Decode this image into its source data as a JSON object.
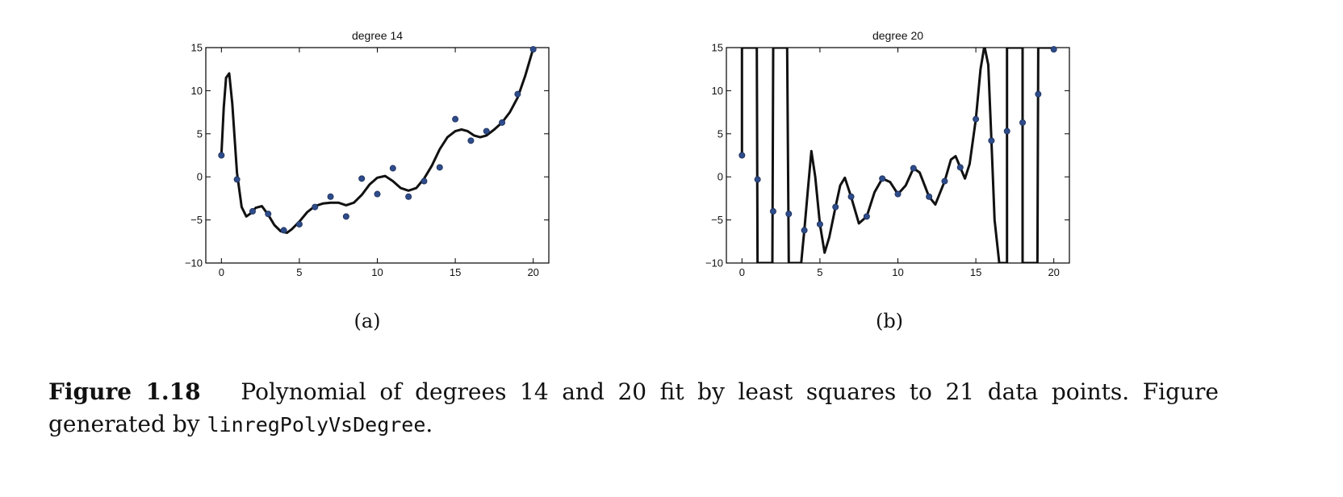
{
  "chart_data": [
    {
      "type": "line",
      "title": "degree 14",
      "xlim": [
        -1,
        21
      ],
      "ylim": [
        -10,
        15
      ],
      "xticks": [
        "0",
        "5",
        "10",
        "15",
        "20"
      ],
      "xtick_values": [
        0,
        5,
        10,
        15,
        20
      ],
      "yticks": [
        "15",
        "10",
        "5",
        "0",
        "-5",
        "-10"
      ],
      "ytick_values": [
        15,
        10,
        5,
        0,
        -5,
        -10
      ],
      "grid": false,
      "series": [
        {
          "kind": "scatter",
          "x": [
            0,
            1,
            2,
            3,
            4,
            5,
            6,
            7,
            8,
            9,
            10,
            11,
            12,
            13,
            14,
            15,
            16,
            17,
            18,
            19,
            20
          ],
          "y": [
            2.5,
            -0.3,
            -4.0,
            -4.3,
            -6.2,
            -5.5,
            -3.5,
            -2.3,
            -4.6,
            -0.2,
            -2.0,
            1.0,
            -2.3,
            -0.5,
            1.1,
            6.7,
            4.2,
            5.3,
            6.3,
            9.6,
            14.8
          ]
        },
        {
          "kind": "line",
          "x": [
            0,
            0.15,
            0.3,
            0.5,
            0.7,
            1.0,
            1.3,
            1.6,
            1.9,
            2.2,
            2.6,
            3.0,
            3.4,
            3.8,
            4.2,
            4.5,
            5.0,
            5.5,
            6.0,
            6.5,
            7.0,
            7.5,
            8.0,
            8.5,
            9.0,
            9.5,
            10.0,
            10.5,
            11.0,
            11.5,
            12.0,
            12.5,
            13.0,
            13.5,
            14.0,
            14.5,
            15.0,
            15.4,
            15.8,
            16.2,
            16.6,
            17.0,
            17.5,
            18.0,
            18.5,
            19.0,
            19.5,
            20.0
          ],
          "y": [
            2.5,
            8.0,
            11.5,
            12.0,
            8.5,
            0.5,
            -3.5,
            -4.6,
            -4.2,
            -3.6,
            -3.4,
            -4.4,
            -5.6,
            -6.3,
            -6.5,
            -6.1,
            -5.2,
            -4.1,
            -3.4,
            -3.1,
            -3.0,
            -3.0,
            -3.3,
            -3.0,
            -2.1,
            -0.9,
            -0.1,
            0.1,
            -0.5,
            -1.3,
            -1.6,
            -1.3,
            -0.2,
            1.3,
            3.2,
            4.6,
            5.3,
            5.5,
            5.3,
            4.8,
            4.6,
            4.8,
            5.5,
            6.3,
            7.5,
            9.2,
            11.8,
            14.9
          ]
        }
      ]
    },
    {
      "type": "line",
      "title": "degree 20",
      "xlim": [
        -1,
        21
      ],
      "ylim": [
        -10,
        15
      ],
      "xticks": [
        "0",
        "5",
        "10",
        "15",
        "20"
      ],
      "xtick_values": [
        0,
        5,
        10,
        15,
        20
      ],
      "yticks": [
        "15",
        "10",
        "5",
        "0",
        "-5",
        "-10"
      ],
      "ytick_values": [
        15,
        10,
        5,
        0,
        -5,
        -10
      ],
      "grid": false,
      "series": [
        {
          "kind": "scatter",
          "x": [
            0,
            1,
            2,
            3,
            4,
            5,
            6,
            7,
            8,
            9,
            10,
            11,
            12,
            13,
            14,
            15,
            16,
            17,
            18,
            19,
            20
          ],
          "y": [
            2.5,
            -0.3,
            -4.0,
            -4.3,
            -6.2,
            -5.5,
            -3.5,
            -2.3,
            -4.6,
            -0.2,
            -2.0,
            1.0,
            -2.3,
            -0.5,
            1.1,
            6.7,
            4.2,
            5.3,
            6.3,
            9.6,
            14.8
          ]
        },
        {
          "kind": "line",
          "x": [
            0,
            0.0,
            0.95,
            1.0,
            1.95,
            2.0,
            2.9,
            3.0,
            3.05,
            3.05,
            3.8,
            3.9,
            4.0,
            4.2,
            4.45,
            4.7,
            5.0,
            5.3,
            5.6,
            6.0,
            6.3,
            6.6,
            7.0,
            7.5,
            8.0,
            8.5,
            9.0,
            9.5,
            10.0,
            10.5,
            11.0,
            11.4,
            12.0,
            12.4,
            13.0,
            13.4,
            13.7,
            14.0,
            14.3,
            14.6,
            15.0,
            15.3,
            15.55,
            15.8,
            16.0,
            16.2,
            16.5,
            16.85,
            17.0,
            17.0,
            17.9,
            18.0,
            18.0,
            18.95,
            19.0,
            19.0,
            20.0
          ],
          "y": [
            2.5,
            15,
            15,
            -10,
            -10,
            15,
            15,
            -10,
            -10,
            -10,
            -10,
            -8.0,
            -6.2,
            -2.0,
            3.0,
            0.0,
            -5.5,
            -8.8,
            -7.0,
            -3.5,
            -1.0,
            -0.1,
            -2.3,
            -5.4,
            -4.6,
            -1.8,
            -0.2,
            -0.6,
            -2.0,
            -1.0,
            1.0,
            0.5,
            -2.3,
            -3.2,
            -0.5,
            2.0,
            2.4,
            1.1,
            -0.2,
            1.5,
            6.7,
            12.5,
            15.2,
            13.0,
            4.2,
            -5.0,
            -10.0,
            -10.0,
            -10.0,
            15.0,
            15.0,
            15.0,
            -10.0,
            -10.0,
            15.0,
            15.0,
            15.0
          ]
        }
      ]
    }
  ],
  "panels": {
    "a_label": "(a)",
    "b_label": "(b)"
  },
  "caption": {
    "label": "Figure 1.18",
    "text": "Polynomial of degrees 14 and 20 fit by least squares to 21 data points. Figure generated by",
    "code": "linregPolyVsDegree",
    "end": "."
  },
  "colors": {
    "point": "#2e4c8a",
    "curve": "#111111"
  }
}
